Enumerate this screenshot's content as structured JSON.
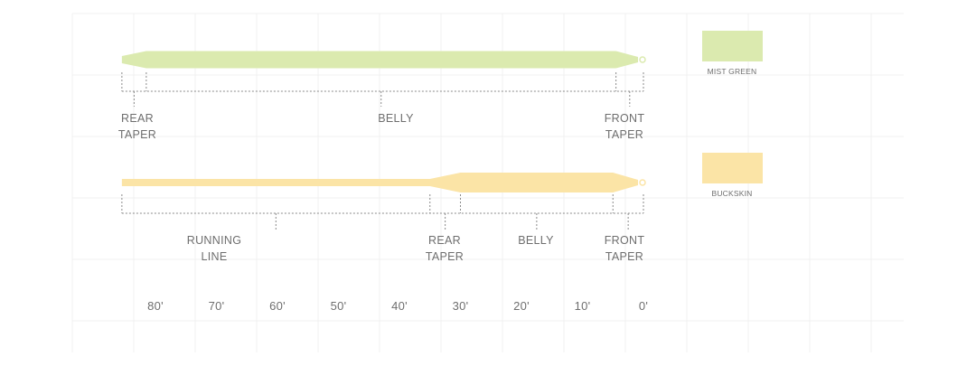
{
  "colors": {
    "mist_green": "#dbeaaf",
    "buckskin": "#fbe4a6",
    "bracket": "#8a8a8a",
    "grid": "#f1f1f1"
  },
  "lines": [
    {
      "name_label": "MIST GREEN",
      "color_key": "mist_green",
      "sections": [
        {
          "label": "REAR\nTAPER",
          "from": 85.5,
          "to": 81.5
        },
        {
          "label": "BELLY",
          "from": 81.5,
          "to": 4.5
        },
        {
          "label": "FRONT\nTAPER",
          "from": 4.5,
          "to": 0
        }
      ]
    },
    {
      "name_label": "BUCKSKIN",
      "color_key": "buckskin",
      "sections": [
        {
          "label": "RUNNING\nLINE",
          "from": 85.5,
          "to": 35
        },
        {
          "label": "REAR\nTAPER",
          "from": 35,
          "to": 30
        },
        {
          "label": "BELLY",
          "from": 30,
          "to": 5
        },
        {
          "label": "FRONT\nTAPER",
          "from": 5,
          "to": 0
        }
      ]
    }
  ],
  "axis": {
    "ticks": [
      {
        "value": 80,
        "label": "80'"
      },
      {
        "value": 70,
        "label": "70'"
      },
      {
        "value": 60,
        "label": "60'"
      },
      {
        "value": 50,
        "label": "50'"
      },
      {
        "value": 40,
        "label": "40'"
      },
      {
        "value": 30,
        "label": "30'"
      },
      {
        "value": 20,
        "label": "20'"
      },
      {
        "value": 10,
        "label": "10'"
      },
      {
        "value": 0,
        "label": "0'"
      }
    ]
  }
}
